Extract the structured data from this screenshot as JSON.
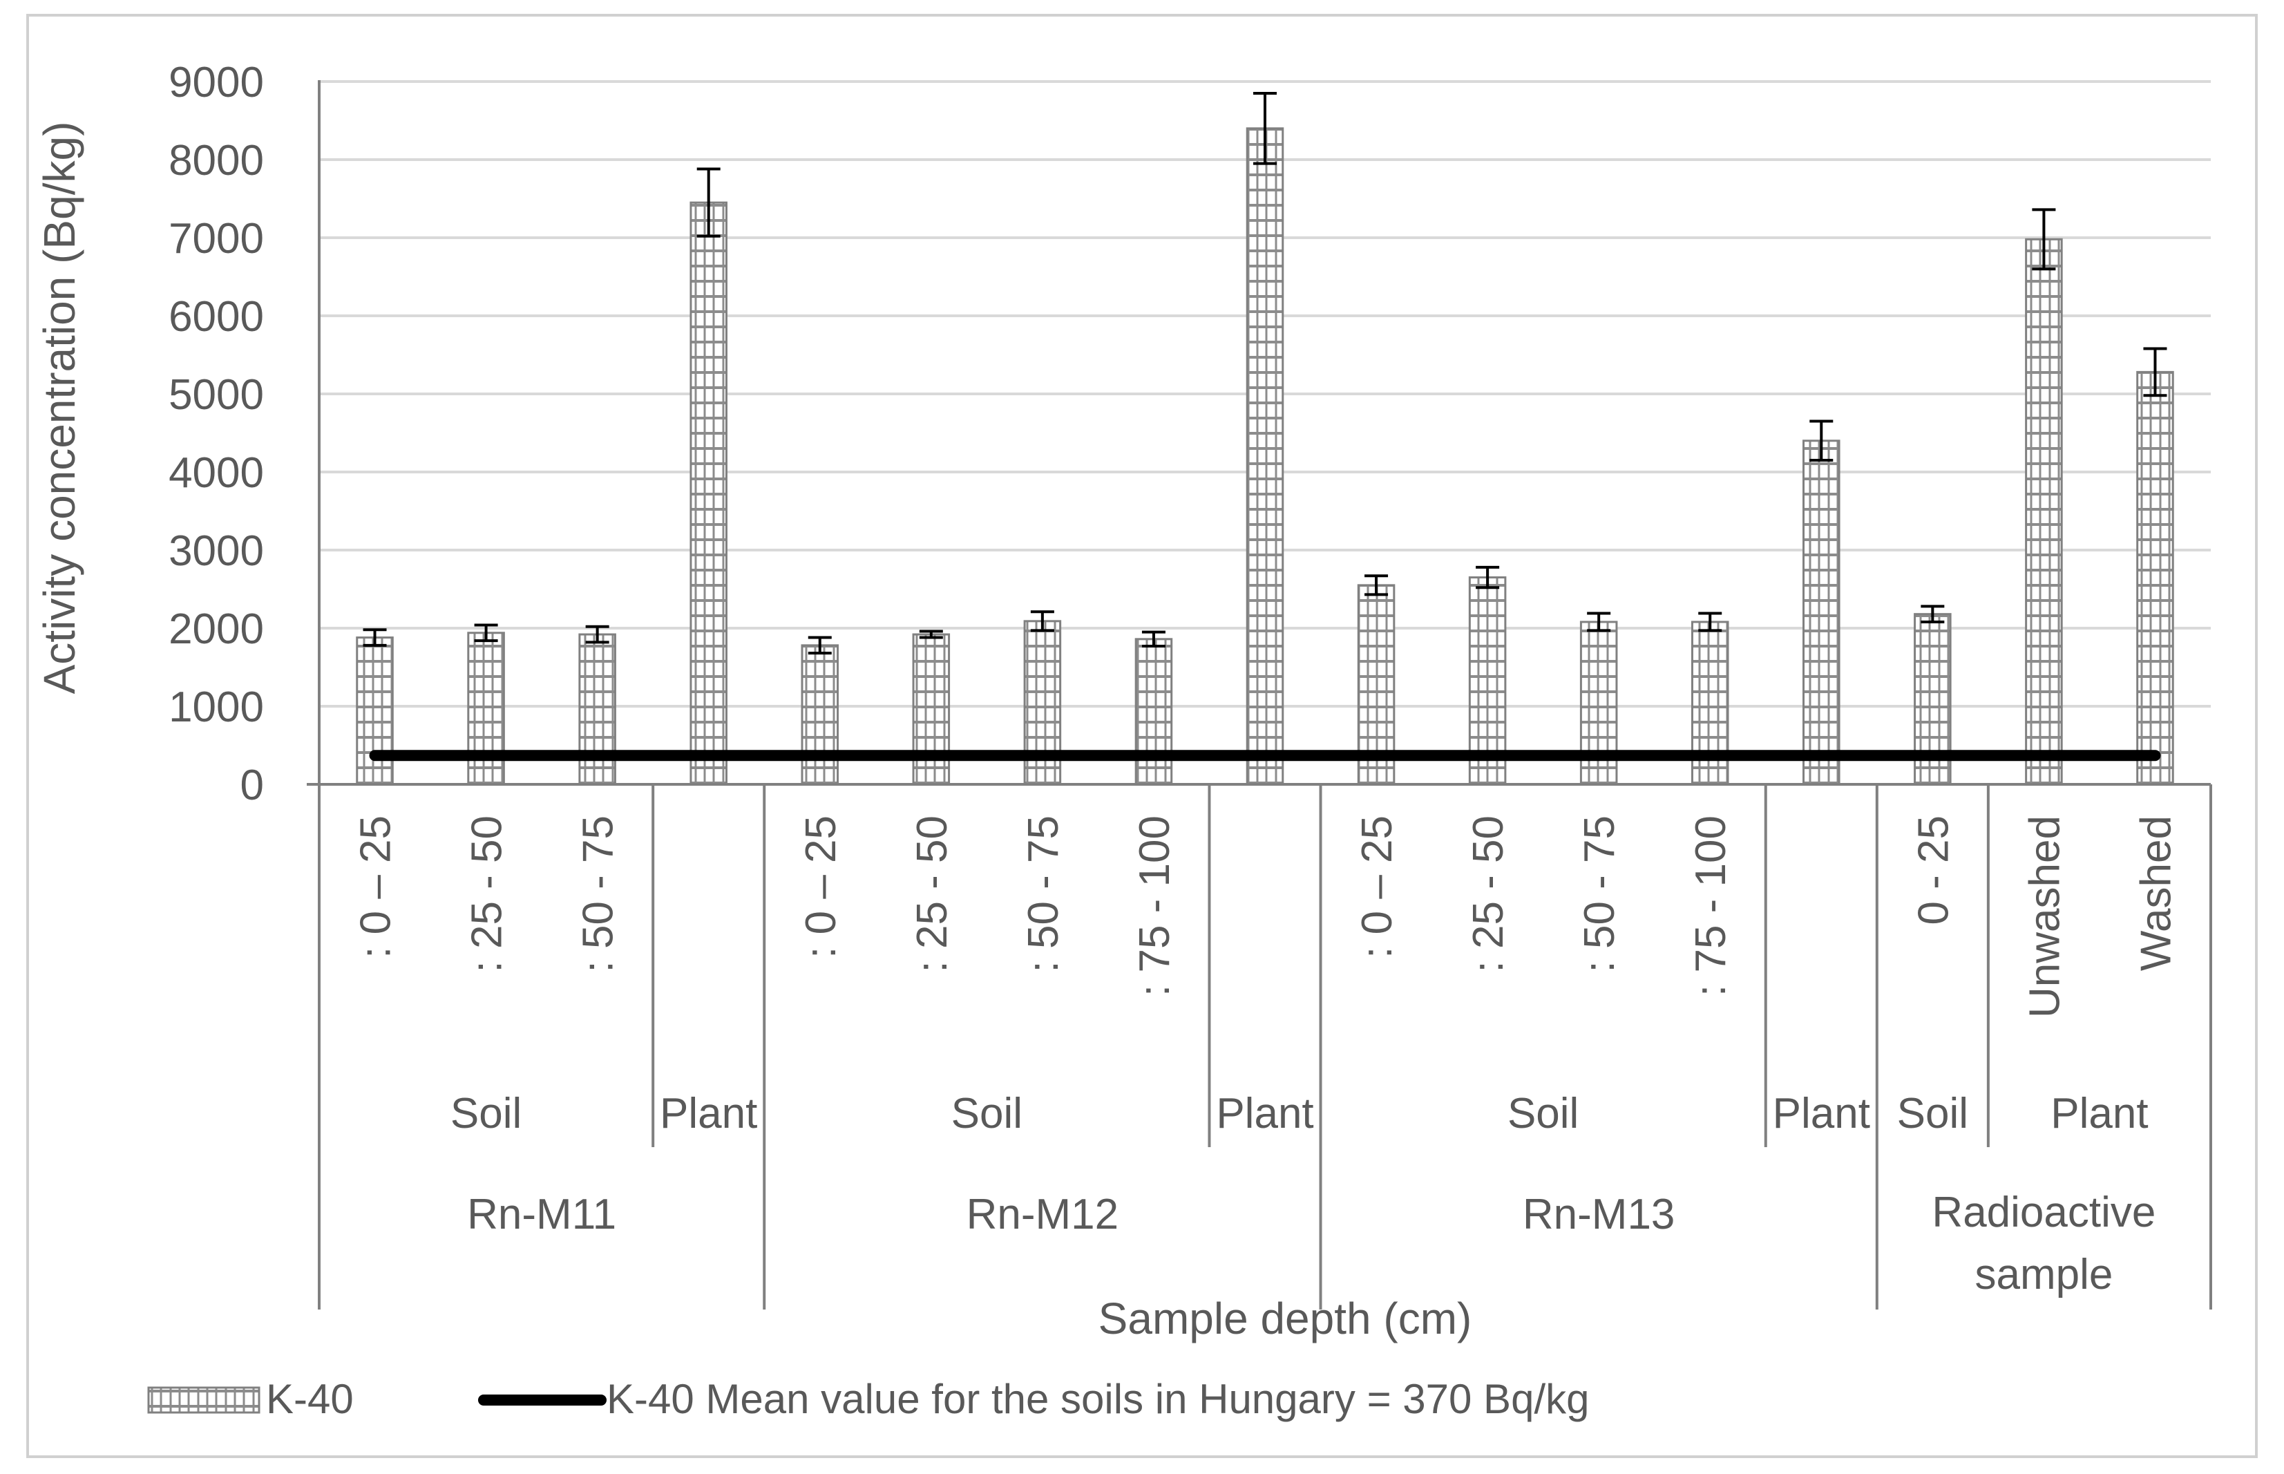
{
  "chart_data": {
    "type": "bar",
    "ylabel": "Activity concentration (Bq/kg)",
    "xlabel": "Sample depth (cm)",
    "ylim": [
      0,
      9000
    ],
    "yticks": [
      0,
      1000,
      2000,
      3000,
      4000,
      5000,
      6000,
      7000,
      8000,
      9000
    ],
    "grid": true,
    "categories": [
      ": 0 – 25",
      ": 25 - 50",
      ": 50 - 75",
      "",
      ": 0 – 25",
      ": 25 - 50",
      ": 50 - 75",
      ": 75 - 100",
      "",
      ": 0 – 25",
      ": 25 - 50",
      ": 50 - 75",
      ": 75 - 100",
      "",
      "0 - 25",
      "Unwashed",
      "Washed"
    ],
    "series": [
      {
        "name": "K-40",
        "values": [
          1880,
          1940,
          1920,
          7450,
          1780,
          1920,
          2090,
          1860,
          8400,
          2550,
          2650,
          2080,
          2080,
          4400,
          2180,
          6980,
          5280
        ],
        "errors": [
          100,
          100,
          100,
          430,
          100,
          40,
          120,
          90,
          450,
          120,
          130,
          110,
          110,
          250,
          100,
          380,
          300
        ]
      }
    ],
    "reference_line": {
      "name": "K-40 Mean value for the soils in Hungary = 370 Bq/kg",
      "value": 370
    },
    "level2_groups": [
      {
        "label": "Soil",
        "start": 0,
        "end": 2
      },
      {
        "label": "Plant",
        "start": 3,
        "end": 3
      },
      {
        "label": "Soil",
        "start": 4,
        "end": 7
      },
      {
        "label": "Plant",
        "start": 8,
        "end": 8
      },
      {
        "label": "Soil",
        "start": 9,
        "end": 12
      },
      {
        "label": "Plant",
        "start": 13,
        "end": 13
      },
      {
        "label": "Soil",
        "start": 14,
        "end": 14
      },
      {
        "label": "Plant",
        "start": 15,
        "end": 16
      }
    ],
    "level3_groups": [
      {
        "label": "Rn-M11",
        "start": 0,
        "end": 3
      },
      {
        "label": "Rn-M12",
        "start": 4,
        "end": 8
      },
      {
        "label": "Rn-M13",
        "start": 9,
        "end": 13
      },
      {
        "label": "Radioactive sample",
        "start": 14,
        "end": 16
      }
    ],
    "legend": {
      "position": "bottom",
      "bar_label": "K-40",
      "line_label": "K-40 Mean value for the soils in Hungary = 370 Bq/kg"
    },
    "colors": {
      "bar_stroke": "#808080",
      "error_bar": "#000000",
      "reference_line": "#000000",
      "grid": "#d9d9d9",
      "axis": "#808080",
      "text": "#595959"
    }
  }
}
